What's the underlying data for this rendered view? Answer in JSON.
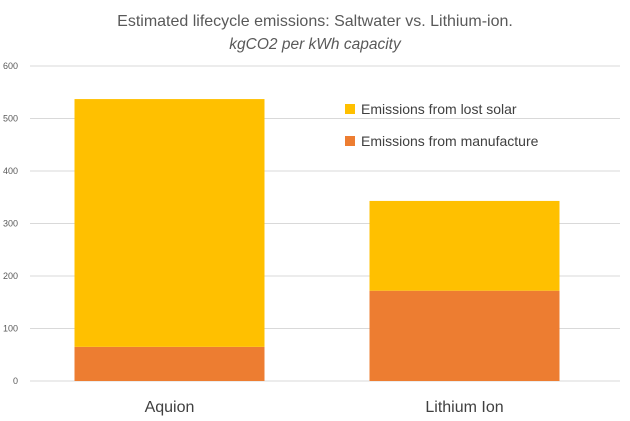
{
  "chart_data": {
    "type": "bar",
    "stacked": true,
    "title": "Estimated lifecycle emissions: Saltwater vs. Lithium-ion.",
    "subtitle": "kgCO2 per kWh capacity",
    "categories": [
      "Aquion",
      "Lithium Ion"
    ],
    "series": [
      {
        "name": "Emissions from manufacture",
        "values": [
          65,
          172
        ],
        "color": "#ED7D31"
      },
      {
        "name": "Emissions from lost solar",
        "values": [
          472,
          171
        ],
        "color": "#FFC000"
      }
    ],
    "ylim": [
      0,
      600
    ],
    "yticks": [
      "0",
      "100",
      "200",
      "300",
      "400",
      "500",
      "600"
    ],
    "grid": true,
    "legend_position": "top-right"
  }
}
